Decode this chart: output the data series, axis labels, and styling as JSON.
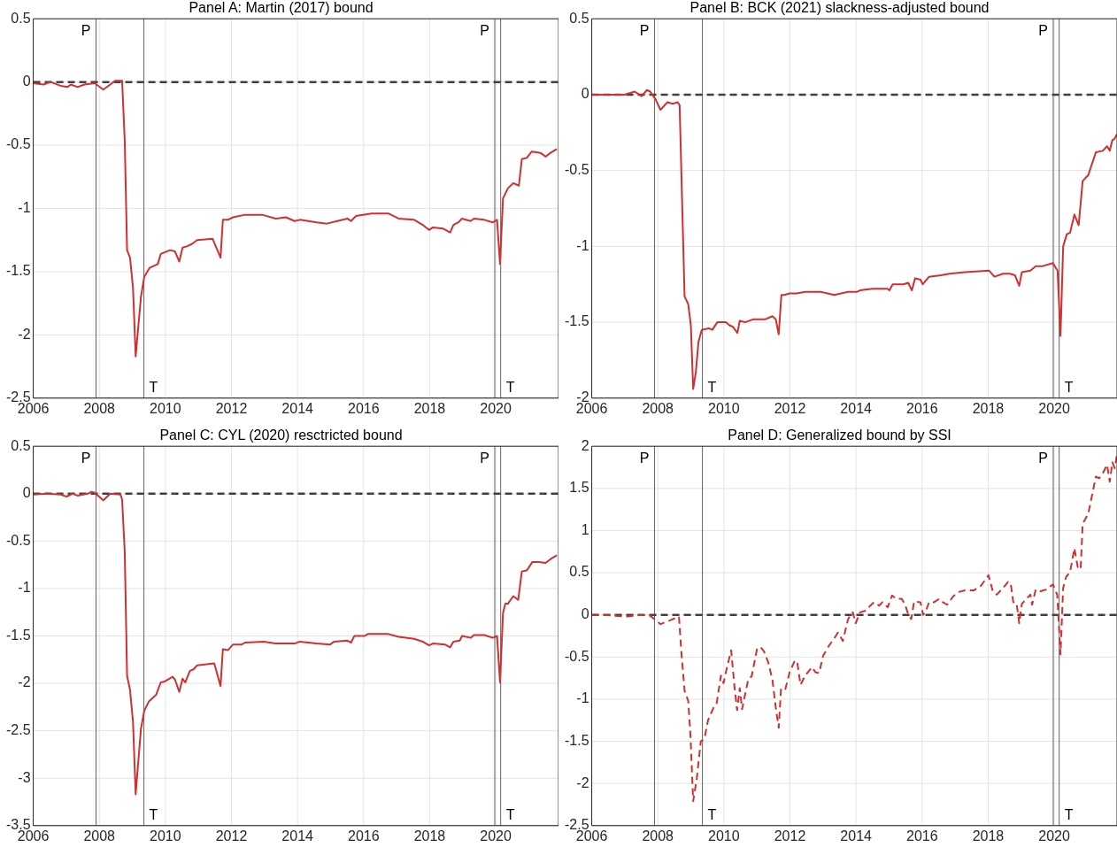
{
  "chart_data": [
    {
      "type": "line",
      "title": "Panel A: Martin (2017) bound",
      "xlim": [
        2006,
        2021.9
      ],
      "xticks": [
        2006,
        2008,
        2010,
        2012,
        2014,
        2016,
        2018,
        2020
      ],
      "ylim": [
        -2.5,
        0.5
      ],
      "yticks": [
        -2.5,
        -2,
        -1.5,
        -1,
        -0.5,
        0,
        0.5
      ],
      "grid": true,
      "legend": false,
      "ref_lines": [
        {
          "axis": "x",
          "value": 2007.9,
          "label": "P",
          "color": "#606060"
        },
        {
          "axis": "x",
          "value": 2009.35,
          "label": "T",
          "color": "#606060"
        },
        {
          "axis": "x",
          "value": 2019.97,
          "label": "P",
          "color": "#606060"
        },
        {
          "axis": "x",
          "value": 2020.15,
          "label": "T",
          "color": "#606060"
        },
        {
          "axis": "y",
          "value": 0,
          "color": "#404040",
          "line_style": "dashed"
        }
      ],
      "series": [
        {
          "color": "#d03030",
          "x": [
            2006,
            2006.31,
            2006.52,
            2006.83,
            2007.03,
            2007.14,
            2007.34,
            2007.55,
            2007.86,
            2008.12,
            2008.33,
            2008.48,
            2008.69,
            2008.77,
            2008.84,
            2008.93,
            2009.02,
            2009.1,
            2009.26,
            2009.36,
            2009.52,
            2009.77,
            2009.86,
            2010.14,
            2010.29,
            2010.42,
            2010.52,
            2010.65,
            2010.81,
            2010.96,
            2011.43,
            2011.67,
            2011.74,
            2011.89,
            2012.05,
            2012.41,
            2012.93,
            2013.34,
            2013.65,
            2013.91,
            2014.07,
            2014.58,
            2014.89,
            2015.2,
            2015.51,
            2015.62,
            2015.77,
            2016.24,
            2016.75,
            2017.06,
            2017.53,
            2017.79,
            2017.98,
            2018.1,
            2018.41,
            2018.62,
            2018.72,
            2018.87,
            2018.98,
            2019.24,
            2019.34,
            2019.65,
            2019.91,
            2020.04,
            2020.13,
            2020.22,
            2020.37,
            2020.53,
            2020.7,
            2020.79,
            2020.94,
            2021.09,
            2021.35,
            2021.51,
            2021.66,
            2021.85
          ],
          "values": [
            -0.01,
            -0.02,
            0,
            -0.03,
            -0.04,
            -0.02,
            -0.04,
            -0.02,
            -0.01,
            -0.06,
            -0.02,
            0.01,
            0.01,
            -0.47,
            -1.33,
            -1.39,
            -1.63,
            -2.17,
            -1.7,
            -1.54,
            -1.47,
            -1.44,
            -1.36,
            -1.33,
            -1.34,
            -1.42,
            -1.31,
            -1.3,
            -1.28,
            -1.25,
            -1.24,
            -1.39,
            -1.09,
            -1.09,
            -1.07,
            -1.05,
            -1.05,
            -1.08,
            -1.07,
            -1.1,
            -1.09,
            -1.11,
            -1.12,
            -1.1,
            -1.08,
            -1.1,
            -1.06,
            -1.04,
            -1.04,
            -1.08,
            -1.09,
            -1.13,
            -1.17,
            -1.15,
            -1.16,
            -1.19,
            -1.13,
            -1.11,
            -1.08,
            -1.1,
            -1.08,
            -1.09,
            -1.11,
            -1.09,
            -1.44,
            -0.92,
            -0.84,
            -0.8,
            -0.82,
            -0.61,
            -0.6,
            -0.55,
            -0.56,
            -0.59,
            -0.56,
            -0.53
          ]
        }
      ]
    },
    {
      "type": "line",
      "title": "Panel B: BCK (2021) slackness-adjusted bound",
      "xlim": [
        2006,
        2021.9
      ],
      "xticks": [
        2006,
        2008,
        2010,
        2012,
        2014,
        2016,
        2018,
        2020
      ],
      "ylim": [
        -2,
        0.5
      ],
      "yticks": [
        -2,
        -1.5,
        -1,
        -0.5,
        0,
        0.5
      ],
      "grid": true,
      "legend": false,
      "ref_lines": [
        {
          "axis": "x",
          "value": 2007.9,
          "label": "P",
          "color": "#606060"
        },
        {
          "axis": "x",
          "value": 2009.35,
          "label": "T",
          "color": "#606060"
        },
        {
          "axis": "x",
          "value": 2019.97,
          "label": "P",
          "color": "#606060"
        },
        {
          "axis": "x",
          "value": 2020.15,
          "label": "T",
          "color": "#606060"
        },
        {
          "axis": "y",
          "value": 0,
          "color": "#404040",
          "line_style": "dashed"
        }
      ],
      "series": [
        {
          "color": "#d03030",
          "x": [
            2006,
            2006.47,
            2006.99,
            2007.3,
            2007.51,
            2007.67,
            2007.77,
            2007.93,
            2008.08,
            2008.29,
            2008.45,
            2008.6,
            2008.66,
            2008.81,
            2008.92,
            2009,
            2009.07,
            2009.15,
            2009.23,
            2009.33,
            2009.54,
            2009.65,
            2009.8,
            2010.06,
            2010.17,
            2010.27,
            2010.41,
            2010.48,
            2010.64,
            2010.9,
            2011.26,
            2011.47,
            2011.57,
            2011.66,
            2011.74,
            2011.83,
            2011.99,
            2012.2,
            2012.46,
            2012.93,
            2013.34,
            2013.76,
            2014.02,
            2014.12,
            2014.49,
            2014.96,
            2015.01,
            2015.11,
            2015.43,
            2015.58,
            2015.69,
            2015.79,
            2015.95,
            2016.02,
            2016.21,
            2016.57,
            2016.83,
            2017.3,
            2018.03,
            2018.19,
            2018.45,
            2018.66,
            2018.81,
            2018.94,
            2019.02,
            2019.28,
            2019.44,
            2019.65,
            2019.96,
            2020.1,
            2020.19,
            2020.27,
            2020.38,
            2020.48,
            2020.61,
            2020.74,
            2020.86,
            2021.03,
            2021.26,
            2021.47,
            2021.6,
            2021.68,
            2021.76,
            2021.83,
            2021.9
          ],
          "values": [
            0,
            0,
            0,
            0.02,
            -0.01,
            0.03,
            0.02,
            -0.03,
            -0.1,
            -0.05,
            -0.06,
            -0.05,
            -0.07,
            -1.33,
            -1.38,
            -1.52,
            -1.94,
            -1.83,
            -1.63,
            -1.55,
            -1.54,
            -1.55,
            -1.5,
            -1.5,
            -1.52,
            -1.53,
            -1.57,
            -1.49,
            -1.5,
            -1.48,
            -1.48,
            -1.46,
            -1.48,
            -1.58,
            -1.32,
            -1.32,
            -1.31,
            -1.31,
            -1.3,
            -1.3,
            -1.32,
            -1.3,
            -1.3,
            -1.29,
            -1.28,
            -1.28,
            -1.29,
            -1.25,
            -1.25,
            -1.24,
            -1.29,
            -1.21,
            -1.22,
            -1.25,
            -1.2,
            -1.19,
            -1.18,
            -1.17,
            -1.16,
            -1.2,
            -1.18,
            -1.18,
            -1.19,
            -1.26,
            -1.17,
            -1.16,
            -1.13,
            -1.13,
            -1.11,
            -1.16,
            -1.59,
            -1,
            -0.92,
            -0.91,
            -0.79,
            -0.86,
            -0.57,
            -0.53,
            -0.38,
            -0.37,
            -0.34,
            -0.37,
            -0.3,
            -0.29,
            -0.26
          ]
        }
      ]
    },
    {
      "type": "line",
      "title": "Panel C: CYL (2020) resctricted bound",
      "xlim": [
        2006,
        2021.9
      ],
      "xticks": [
        2006,
        2008,
        2010,
        2012,
        2014,
        2016,
        2018,
        2020
      ],
      "ylim": [
        -3.5,
        0.5
      ],
      "yticks": [
        -3.5,
        -3,
        -2.5,
        -2,
        -1.5,
        -1,
        -0.5,
        0,
        0.5
      ],
      "grid": true,
      "legend": false,
      "ref_lines": [
        {
          "axis": "x",
          "value": 2007.9,
          "label": "P",
          "color": "#606060"
        },
        {
          "axis": "x",
          "value": 2009.35,
          "label": "T",
          "color": "#606060"
        },
        {
          "axis": "x",
          "value": 2019.97,
          "label": "P",
          "color": "#606060"
        },
        {
          "axis": "x",
          "value": 2020.15,
          "label": "T",
          "color": "#606060"
        },
        {
          "axis": "y",
          "value": 0,
          "color": "#404040",
          "line_style": "dashed"
        }
      ],
      "series": [
        {
          "color": "#d03030",
          "x": [
            2006,
            2006.41,
            2006.83,
            2007.01,
            2007.19,
            2007.34,
            2007.65,
            2007.76,
            2007.86,
            2008.12,
            2008.33,
            2008.64,
            2008.69,
            2008.77,
            2008.84,
            2008.93,
            2009.02,
            2009.1,
            2009.26,
            2009.36,
            2009.5,
            2009.72,
            2009.86,
            2009.98,
            2010.22,
            2010.29,
            2010.42,
            2010.52,
            2010.6,
            2010.74,
            2010.86,
            2010.96,
            2011.48,
            2011.67,
            2011.74,
            2011.89,
            2012.05,
            2012.31,
            2012.41,
            2012.98,
            2013.34,
            2013.91,
            2014.07,
            2014.58,
            2014.99,
            2015.1,
            2015.51,
            2015.62,
            2015.72,
            2016.03,
            2016.13,
            2016.75,
            2017.06,
            2017.53,
            2017.79,
            2017.98,
            2018.1,
            2018.46,
            2018.62,
            2018.72,
            2018.91,
            2018.98,
            2019.24,
            2019.34,
            2019.65,
            2019.91,
            2020.04,
            2020.13,
            2020.22,
            2020.29,
            2020.37,
            2020.53,
            2020.68,
            2020.79,
            2020.94,
            2021.11,
            2021.3,
            2021.51,
            2021.66,
            2021.85
          ],
          "values": [
            -0.01,
            0,
            -0.01,
            -0.03,
            0,
            -0.02,
            0,
            0.02,
            0.01,
            -0.07,
            0,
            -0.01,
            -0.06,
            -0.62,
            -1.92,
            -2.07,
            -2.41,
            -3.17,
            -2.48,
            -2.29,
            -2.19,
            -2.12,
            -1.99,
            -1.98,
            -1.93,
            -1.96,
            -2.09,
            -1.95,
            -1.99,
            -1.87,
            -1.85,
            -1.81,
            -1.79,
            -2.03,
            -1.64,
            -1.65,
            -1.59,
            -1.59,
            -1.57,
            -1.56,
            -1.58,
            -1.58,
            -1.56,
            -1.58,
            -1.59,
            -1.56,
            -1.55,
            -1.57,
            -1.5,
            -1.5,
            -1.48,
            -1.48,
            -1.51,
            -1.53,
            -1.56,
            -1.6,
            -1.58,
            -1.59,
            -1.62,
            -1.56,
            -1.55,
            -1.5,
            -1.52,
            -1.49,
            -1.49,
            -1.52,
            -1.5,
            -1.99,
            -1.26,
            -1.16,
            -1.16,
            -1.08,
            -1.12,
            -0.82,
            -0.81,
            -0.72,
            -0.72,
            -0.73,
            -0.69,
            -0.65
          ]
        }
      ]
    },
    {
      "type": "line",
      "title": "Panel D: Generalized bound by SSI",
      "xlim": [
        2006,
        2021.9
      ],
      "xticks": [
        2006,
        2008,
        2010,
        2012,
        2014,
        2016,
        2018,
        2020
      ],
      "ylim": [
        -2.5,
        2
      ],
      "yticks": [
        -2.5,
        -2,
        -1.5,
        -1,
        -0.5,
        0,
        0.5,
        1,
        1.5,
        2
      ],
      "grid": true,
      "legend": false,
      "line_style": "dashed",
      "ref_lines": [
        {
          "axis": "x",
          "value": 2007.9,
          "label": "P",
          "color": "#606060"
        },
        {
          "axis": "x",
          "value": 2009.35,
          "label": "T",
          "color": "#606060"
        },
        {
          "axis": "x",
          "value": 2019.97,
          "label": "P",
          "color": "#606060"
        },
        {
          "axis": "x",
          "value": 2020.15,
          "label": "T",
          "color": "#606060"
        },
        {
          "axis": "y",
          "value": 0,
          "color": "#404040",
          "line_style": "dashed"
        }
      ],
      "series": [
        {
          "color": "#d03030",
          "x": [
            2006,
            2006.36,
            2006.68,
            2007.09,
            2007.46,
            2007.77,
            2008.08,
            2008.4,
            2008.64,
            2008.71,
            2008.81,
            2008.92,
            2008.99,
            2009.07,
            2009.18,
            2009.3,
            2009.41,
            2009.52,
            2009.7,
            2009.78,
            2009.91,
            2009.99,
            2010.06,
            2010.22,
            2010.32,
            2010.4,
            2010.48,
            2010.55,
            2010.74,
            2010.84,
            2011,
            2011.1,
            2011.21,
            2011.34,
            2011.47,
            2011.57,
            2011.66,
            2011.73,
            2011.86,
            2011.99,
            2012.15,
            2012.22,
            2012.32,
            2012.46,
            2012.67,
            2012.77,
            2012.88,
            2013.01,
            2013.19,
            2013.34,
            2013.45,
            2013.53,
            2013.6,
            2013.76,
            2013.9,
            2013.99,
            2014.12,
            2014.28,
            2014.54,
            2014.7,
            2014.8,
            2014.96,
            2015.09,
            2015.22,
            2015.38,
            2015.48,
            2015.56,
            2015.67,
            2015.76,
            2015.95,
            2016.03,
            2016.1,
            2016.21,
            2016.36,
            2016.52,
            2016.63,
            2016.76,
            2016.94,
            2017.09,
            2017.3,
            2017.56,
            2017.77,
            2018.01,
            2018.14,
            2018.26,
            2018.45,
            2018.6,
            2018.68,
            2018.76,
            2018.86,
            2018.94,
            2019.02,
            2019.18,
            2019.28,
            2019.33,
            2019.44,
            2019.59,
            2019.75,
            2019.96,
            2020.09,
            2020.19,
            2020.27,
            2020.36,
            2020.48,
            2020.61,
            2020.71,
            2020.8,
            2020.86,
            2021.03,
            2021.26,
            2021.36,
            2021.47,
            2021.6,
            2021.68,
            2021.76,
            2021.83,
            2021.9
          ],
          "values": [
            0,
            0,
            -0.01,
            -0.02,
            0,
            -0.01,
            -0.11,
            -0.06,
            -0.02,
            -0.43,
            -0.9,
            -1.02,
            -1.44,
            -2.21,
            -1.94,
            -1.5,
            -1.47,
            -1.25,
            -1.09,
            -1.05,
            -0.72,
            -0.81,
            -0.68,
            -0.42,
            -0.85,
            -1.13,
            -0.87,
            -1.12,
            -0.76,
            -0.73,
            -0.41,
            -0.38,
            -0.43,
            -0.56,
            -0.77,
            -1.1,
            -1.34,
            -0.87,
            -0.88,
            -0.68,
            -0.54,
            -0.56,
            -0.83,
            -0.72,
            -0.62,
            -0.68,
            -0.69,
            -0.48,
            -0.36,
            -0.28,
            -0.21,
            -0.26,
            -0.31,
            -0.05,
            0.03,
            -0.1,
            0.03,
            0.05,
            0.15,
            0.11,
            0.15,
            0.09,
            0.23,
            0.19,
            0.19,
            0.13,
            0.03,
            -0.05,
            0.16,
            0.15,
            0,
            0.03,
            0.15,
            0.15,
            0.19,
            0.15,
            0.12,
            0.22,
            0.27,
            0.29,
            0.29,
            0.34,
            0.47,
            0.28,
            0.24,
            0.32,
            0.39,
            0.38,
            0.15,
            0.14,
            -0.1,
            0.13,
            0.2,
            0.24,
            0.12,
            0.3,
            0.28,
            0.3,
            0.36,
            0.24,
            -0.47,
            0.32,
            0.45,
            0.51,
            0.79,
            0.57,
            0.54,
            1.08,
            1.2,
            1.64,
            1.62,
            1.68,
            1.78,
            1.58,
            1.81,
            1.74,
            1.9
          ]
        }
      ]
    }
  ]
}
